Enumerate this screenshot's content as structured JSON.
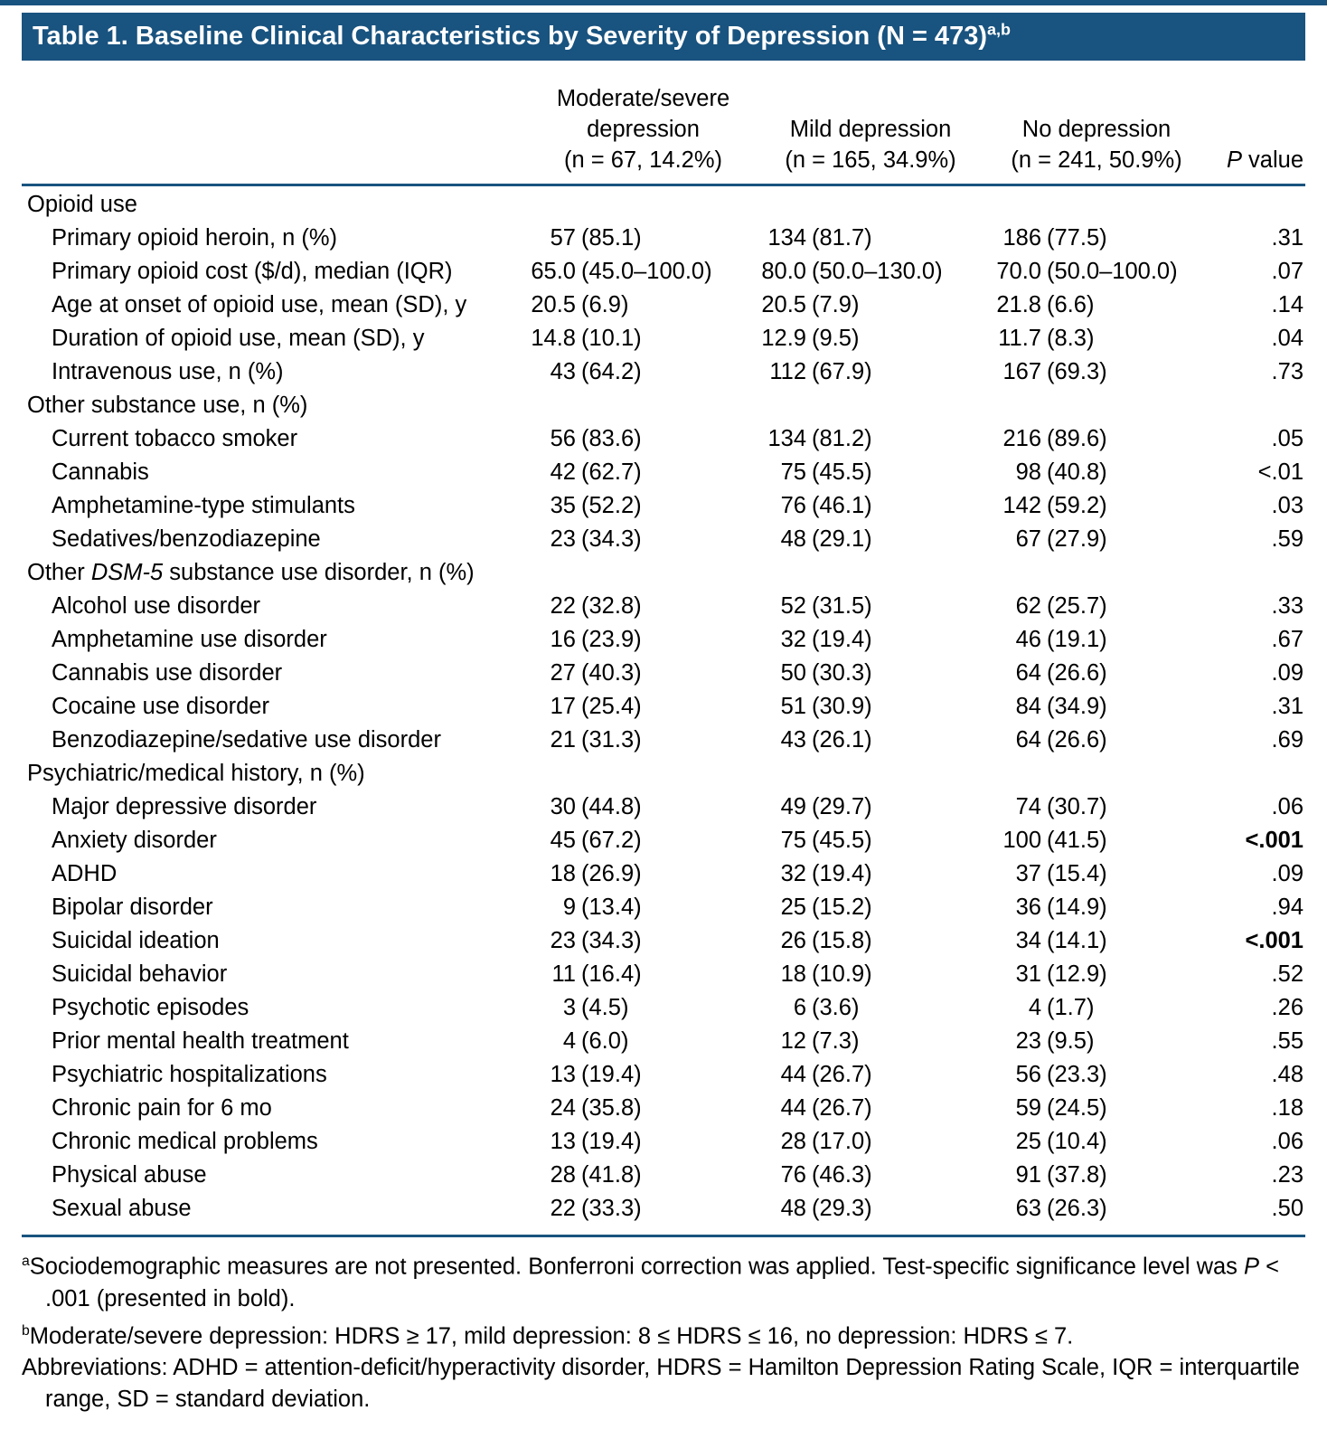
{
  "colors": {
    "accent": "#19537F"
  },
  "title": {
    "parts": [
      {
        "t": "Table 1. Baseline Clinical Characteristics by Severity of Depression (N = 473)"
      },
      {
        "t": "a,b",
        "style": "sup"
      }
    ]
  },
  "header": {
    "groups": [
      {
        "lines": [
          "Moderate/severe",
          "depression",
          "(n = 67, 14.2%)"
        ]
      },
      {
        "lines": [
          "Mild depression",
          "(n = 165, 34.9%)"
        ]
      },
      {
        "lines": [
          "No depression",
          "(n = 241, 50.9%)"
        ]
      }
    ],
    "p_value": {
      "parts": [
        {
          "t": "P",
          "style": "italic"
        },
        {
          "t": " value"
        }
      ]
    }
  },
  "rows": [
    {
      "section": true,
      "label": [
        {
          "t": "Opioid use"
        }
      ]
    },
    {
      "label": [
        {
          "t": "Primary opioid heroin, n (%)"
        }
      ],
      "values": [
        "57 (85.1)",
        "134 (81.7)",
        "186 (77.5)"
      ],
      "p": ".31"
    },
    {
      "label": [
        {
          "t": "Primary opioid cost ($/d), median (IQR)"
        }
      ],
      "values": [
        "65.0 (45.0–100.0)",
        "80.0 (50.0–130.0)",
        "70.0 (50.0–100.0)"
      ],
      "p": ".07"
    },
    {
      "label": [
        {
          "t": "Age at onset of opioid use, mean (SD), y"
        }
      ],
      "values": [
        "20.5 (6.9)",
        "20.5 (7.9)",
        "21.8 (6.6)"
      ],
      "p": ".14"
    },
    {
      "label": [
        {
          "t": "Duration of opioid use, mean (SD), y"
        }
      ],
      "values": [
        "14.8 (10.1)",
        "12.9 (9.5)",
        "11.7 (8.3)"
      ],
      "p": ".04"
    },
    {
      "label": [
        {
          "t": "Intravenous use, n (%)"
        }
      ],
      "values": [
        "43 (64.2)",
        "112 (67.9)",
        "167 (69.3)"
      ],
      "p": ".73"
    },
    {
      "section": true,
      "label": [
        {
          "t": "Other substance use, n (%)"
        }
      ]
    },
    {
      "label": [
        {
          "t": "Current tobacco smoker"
        }
      ],
      "values": [
        "56 (83.6)",
        "134 (81.2)",
        "216 (89.6)"
      ],
      "p": ".05"
    },
    {
      "label": [
        {
          "t": "Cannabis"
        }
      ],
      "values": [
        "42 (62.7)",
        "75 (45.5)",
        "98 (40.8)"
      ],
      "p": "<.01"
    },
    {
      "label": [
        {
          "t": "Amphetamine-type stimulants"
        }
      ],
      "values": [
        "35 (52.2)",
        "76 (46.1)",
        "142 (59.2)"
      ],
      "p": ".03"
    },
    {
      "label": [
        {
          "t": "Sedatives/benzodiazepine"
        }
      ],
      "values": [
        "23 (34.3)",
        "48 (29.1)",
        "67 (27.9)"
      ],
      "p": ".59"
    },
    {
      "section": true,
      "label": [
        {
          "t": "Other "
        },
        {
          "t": "DSM-5",
          "style": "italic"
        },
        {
          "t": " substance use disorder, n (%)"
        }
      ]
    },
    {
      "label": [
        {
          "t": "Alcohol use disorder"
        }
      ],
      "values": [
        "22 (32.8)",
        "52 (31.5)",
        "62 (25.7)"
      ],
      "p": ".33"
    },
    {
      "label": [
        {
          "t": "Amphetamine use disorder"
        }
      ],
      "values": [
        "16 (23.9)",
        "32 (19.4)",
        "46 (19.1)"
      ],
      "p": ".67"
    },
    {
      "label": [
        {
          "t": "Cannabis use disorder"
        }
      ],
      "values": [
        "27 (40.3)",
        "50 (30.3)",
        "64 (26.6)"
      ],
      "p": ".09"
    },
    {
      "label": [
        {
          "t": "Cocaine use disorder"
        }
      ],
      "values": [
        "17 (25.4)",
        "51 (30.9)",
        "84 (34.9)"
      ],
      "p": ".31"
    },
    {
      "label": [
        {
          "t": "Benzodiazepine/sedative use disorder"
        }
      ],
      "values": [
        "21 (31.3)",
        "43 (26.1)",
        "64 (26.6)"
      ],
      "p": ".69"
    },
    {
      "section": true,
      "label": [
        {
          "t": "Psychiatric/medical history, n (%)"
        }
      ]
    },
    {
      "label": [
        {
          "t": "Major depressive disorder"
        }
      ],
      "values": [
        "30 (44.8)",
        "49 (29.7)",
        "74 (30.7)"
      ],
      "p": ".06"
    },
    {
      "label": [
        {
          "t": "Anxiety disorder"
        }
      ],
      "values": [
        "45 (67.2)",
        "75 (45.5)",
        "100 (41.5)"
      ],
      "p": "<.001",
      "p_bold": true
    },
    {
      "label": [
        {
          "t": "ADHD"
        }
      ],
      "values": [
        "18 (26.9)",
        "32 (19.4)",
        "37 (15.4)"
      ],
      "p": ".09"
    },
    {
      "label": [
        {
          "t": "Bipolar disorder"
        }
      ],
      "values": [
        "9 (13.4)",
        "25 (15.2)",
        "36 (14.9)"
      ],
      "p": ".94"
    },
    {
      "label": [
        {
          "t": "Suicidal ideation"
        }
      ],
      "values": [
        "23 (34.3)",
        "26 (15.8)",
        "34 (14.1)"
      ],
      "p": "<.001",
      "p_bold": true
    },
    {
      "label": [
        {
          "t": "Suicidal behavior"
        }
      ],
      "values": [
        "11 (16.4)",
        "18 (10.9)",
        "31 (12.9)"
      ],
      "p": ".52"
    },
    {
      "label": [
        {
          "t": "Psychotic episodes"
        }
      ],
      "values": [
        "3 (4.5)",
        "6 (3.6)",
        "4 (1.7)"
      ],
      "p": ".26"
    },
    {
      "label": [
        {
          "t": "Prior mental health treatment"
        }
      ],
      "values": [
        "4 (6.0)",
        "12 (7.3)",
        "23 (9.5)"
      ],
      "p": ".55"
    },
    {
      "label": [
        {
          "t": "Psychiatric hospitalizations"
        }
      ],
      "values": [
        "13 (19.4)",
        "44 (26.7)",
        "56 (23.3)"
      ],
      "p": ".48"
    },
    {
      "label": [
        {
          "t": "Chronic pain for 6 mo"
        }
      ],
      "values": [
        "24 (35.8)",
        "44 (26.7)",
        "59 (24.5)"
      ],
      "p": ".18"
    },
    {
      "label": [
        {
          "t": "Chronic medical problems"
        }
      ],
      "values": [
        "13 (19.4)",
        "28 (17.0)",
        "25 (10.4)"
      ],
      "p": ".06"
    },
    {
      "label": [
        {
          "t": "Physical abuse"
        }
      ],
      "values": [
        "28 (41.8)",
        "76 (46.3)",
        "91 (37.8)"
      ],
      "p": ".23"
    },
    {
      "label": [
        {
          "t": "Sexual abuse"
        }
      ],
      "values": [
        "22 (33.3)",
        "48 (29.3)",
        "63 (26.3)"
      ],
      "p": ".50"
    }
  ],
  "footnotes": [
    {
      "parts": [
        {
          "t": "a",
          "style": "sup"
        },
        {
          "t": "Sociodemographic measures are not presented. Bonferroni correction was applied. Test-specific significance level was "
        },
        {
          "t": "P",
          "style": "italic"
        },
        {
          "t": " < .001 (presented in bold)."
        }
      ]
    },
    {
      "parts": [
        {
          "t": "b",
          "style": "sup"
        },
        {
          "t": "Moderate/severe depression: HDRS ≥ 17,  mild depression: 8 ≤ HDRS ≤ 16, no depression: HDRS ≤ 7."
        }
      ]
    },
    {
      "parts": [
        {
          "t": "Abbreviations: ADHD = attention-deficit/hyperactivity disorder, HDRS = Hamilton Depression Rating Scale, IQR = interquartile range, SD = standard deviation."
        }
      ]
    }
  ]
}
